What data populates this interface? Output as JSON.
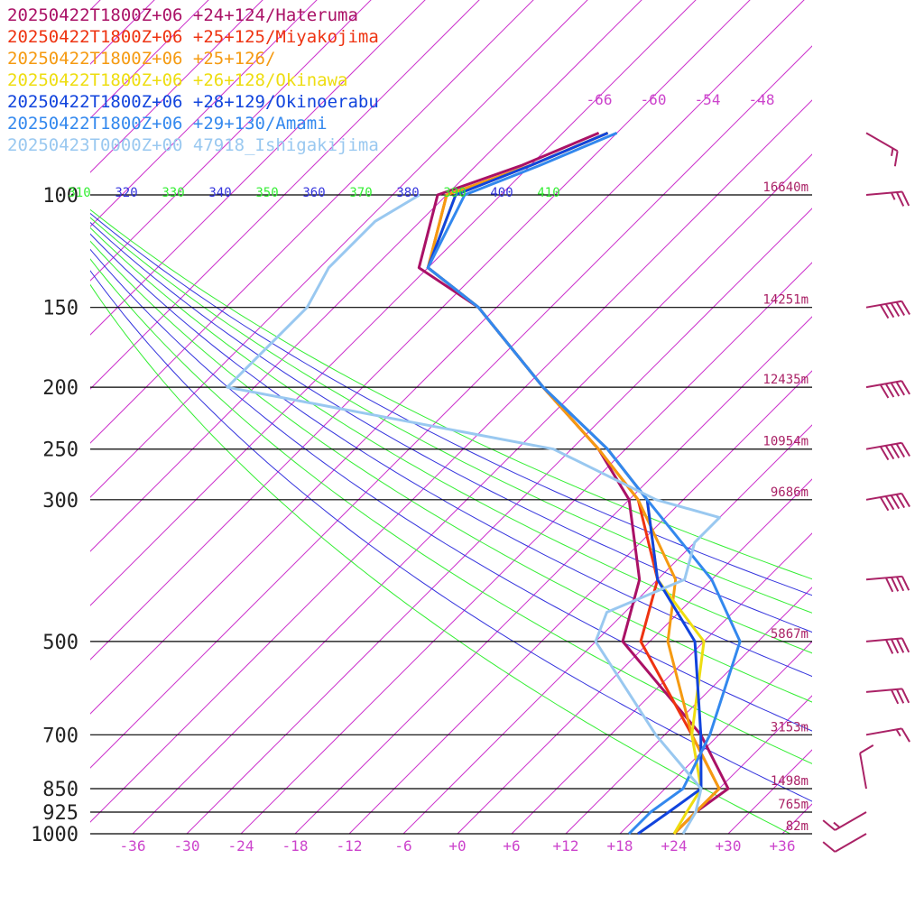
{
  "chart_data": {
    "type": "line",
    "chart_kind": "skew-T log-P sounding",
    "xlabel": "",
    "ylabel": "",
    "legend_placement": "top-left",
    "pressure_axis": {
      "scale": "log",
      "range": [
        100,
        1000
      ],
      "ticks": [
        100,
        150,
        200,
        250,
        300,
        500,
        700,
        850,
        925,
        1000
      ],
      "tick_labels": [
        "100",
        "150",
        "200",
        "250",
        "300",
        "500",
        "700",
        "850",
        "925",
        "1000"
      ],
      "heights": [
        "16640m",
        "14251m",
        "12435m",
        "10954m",
        "9686m",
        "5867m",
        "3153m",
        "1498m",
        "765m",
        "82m"
      ]
    },
    "temperature_axis": {
      "range": [
        -40,
        40
      ],
      "tick_labels": [
        "-36",
        "-30",
        "-24",
        "-18",
        "-12",
        "-6",
        "+0",
        "+6",
        "+12",
        "+18",
        "+24",
        "+30",
        "+36"
      ]
    },
    "upper_isotherm_labels": [
      "-66",
      "-60",
      "-54",
      "-48"
    ],
    "theta_e_labels": [
      "310",
      "320",
      "330",
      "340",
      "350",
      "360",
      "370",
      "380",
      "390",
      "400",
      "410"
    ],
    "colors": {
      "isotherm": "#cc33cc",
      "isobar": "#000000",
      "theta_a": "#33ee33",
      "theta_b": "#3333dd",
      "axis_label": "#cc44cc",
      "pressure_label": "#222222",
      "height_label": "#aa2266",
      "wind_barb": "#aa2266"
    },
    "series": [
      {
        "name": "20250422T1800Z+06 +24+124/Hateruma",
        "color": "#aa1166",
        "p": [
          1000,
          925,
          850,
          700,
          500,
          400,
          300,
          250,
          200,
          150,
          130,
          100,
          90,
          80
        ],
        "t": [
          24,
          24,
          25,
          16,
          -3,
          -8,
          -18,
          -27,
          -40,
          -56,
          -67,
          -73,
          -67,
          -62
        ]
      },
      {
        "name": "20250422T1800Z+06 +25+125/Miyakojima",
        "color": "#ee3311",
        "p": [
          1000,
          925,
          850,
          700,
          500,
          400,
          300,
          250,
          200,
          150,
          130,
          100,
          90,
          80
        ],
        "t": [
          24,
          24,
          24,
          15,
          -1,
          -6,
          -17,
          -27,
          -40,
          -56,
          -66,
          -72,
          -66,
          -61
        ]
      },
      {
        "name": "20250422T1800Z+06 +25+126/",
        "color": "#f59a11",
        "p": [
          1000,
          925,
          850,
          700,
          500,
          400,
          300,
          250,
          200,
          150,
          130,
          100,
          90,
          80
        ],
        "t": [
          24,
          24,
          24,
          15,
          2,
          -4,
          -17,
          -27,
          -40,
          -56,
          -66,
          -72,
          -66,
          -61
        ]
      },
      {
        "name": "20250422T1800Z+06 +26+128/Okinawa",
        "color": "#eedd11",
        "p": [
          1000,
          925,
          850,
          700,
          500,
          400,
          300,
          250,
          200,
          150,
          130,
          100,
          90,
          80
        ],
        "t": [
          24,
          23,
          22,
          15,
          6,
          -6,
          -16,
          -26,
          -40,
          -56,
          -66,
          -71,
          -66,
          -61
        ]
      },
      {
        "name": "20250422T1800Z+06 +28+129/Okinoerabu",
        "color": "#1144dd",
        "p": [
          1000,
          925,
          850,
          700,
          500,
          400,
          300,
          250,
          200,
          150,
          130,
          100,
          90,
          80
        ],
        "t": [
          20,
          21,
          22,
          16,
          5,
          -6,
          -16,
          -26,
          -40,
          -56,
          -66,
          -71,
          -66,
          -61
        ]
      },
      {
        "name": "20250422T1800Z+06 +29+130/Amami",
        "color": "#3388ee",
        "p": [
          1000,
          925,
          850,
          700,
          500,
          400,
          300,
          250,
          200,
          150,
          130,
          100,
          90,
          80
        ],
        "t": [
          19,
          19,
          20,
          17,
          10,
          0,
          -16,
          -26,
          -40,
          -56,
          -66,
          -70,
          -65,
          -60
        ]
      },
      {
        "name": "20250423T0000Z+00 47918_Ishigakijima",
        "color": "#99c8f0",
        "p": [
          1000,
          925,
          850,
          700,
          500,
          450,
          400,
          350,
          320,
          300,
          250,
          200,
          170,
          150,
          130,
          110,
          100
        ],
        "t": [
          25,
          24,
          22,
          11,
          -6,
          -8,
          -3,
          -6,
          -6,
          -15,
          -32,
          -75,
          -75,
          -75,
          -77,
          -77,
          -75
        ]
      }
    ],
    "wind_barbs": [
      {
        "p": 1000,
        "direction_deg": 60,
        "speed_kt": 10
      },
      {
        "p": 925,
        "direction_deg": 60,
        "speed_kt": 15
      },
      {
        "p": 850,
        "direction_deg": 170,
        "speed_kt": 10
      },
      {
        "p": 700,
        "direction_deg": 260,
        "speed_kt": 15
      },
      {
        "p": 600,
        "direction_deg": 265,
        "speed_kt": 30
      },
      {
        "p": 500,
        "direction_deg": 265,
        "speed_kt": 40
      },
      {
        "p": 400,
        "direction_deg": 265,
        "speed_kt": 40
      },
      {
        "p": 300,
        "direction_deg": 260,
        "speed_kt": 50
      },
      {
        "p": 250,
        "direction_deg": 260,
        "speed_kt": 50
      },
      {
        "p": 200,
        "direction_deg": 260,
        "speed_kt": 50
      },
      {
        "p": 150,
        "direction_deg": 260,
        "speed_kt": 50
      },
      {
        "p": 100,
        "direction_deg": 265,
        "speed_kt": 25
      },
      {
        "p": 80,
        "direction_deg": 300,
        "speed_kt": 15
      }
    ]
  }
}
